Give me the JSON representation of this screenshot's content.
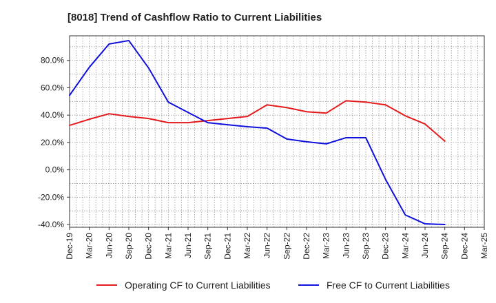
{
  "chart_data": {
    "type": "line",
    "title": "[8018]  Trend of Cashflow Ratio to Current Liabilities",
    "xlabel": "",
    "ylabel": "",
    "ylim": [
      -42,
      98
    ],
    "yticks": [
      -40,
      -20,
      0,
      20,
      40,
      60,
      80
    ],
    "ytick_labels": [
      "-40.0%",
      "-20.0%",
      "0.0%",
      "20.0%",
      "40.0%",
      "60.0%",
      "80.0%"
    ],
    "x": [
      "Dec-19",
      "Mar-20",
      "Jun-20",
      "Sep-20",
      "Dec-20",
      "Mar-21",
      "Jun-21",
      "Sep-21",
      "Dec-21",
      "Mar-22",
      "Jun-22",
      "Sep-22",
      "Dec-22",
      "Mar-23",
      "Jun-23",
      "Sep-23",
      "Dec-23",
      "Mar-24",
      "Jun-24",
      "Sep-24",
      "Dec-24",
      "Mar-25"
    ],
    "grid": true,
    "legend_position": "bottom",
    "series": [
      {
        "name": "Operating CF to Current Liabilities",
        "color": "#e41a1c",
        "values": [
          32.5,
          37.0,
          41.0,
          39.0,
          37.5,
          34.5,
          34.5,
          36.0,
          37.5,
          39.0,
          47.5,
          45.5,
          42.5,
          41.5,
          50.5,
          49.5,
          47.5,
          39.5,
          33.5,
          21.0,
          null,
          null
        ]
      },
      {
        "name": "Free CF to Current Liabilities",
        "color": "#1010dd",
        "values": [
          54.5,
          75.0,
          92.0,
          94.5,
          74.5,
          49.5,
          42.0,
          34.5,
          33.0,
          31.5,
          30.5,
          22.5,
          20.5,
          19.0,
          23.5,
          23.5,
          -7.0,
          -33.0,
          -39.5,
          -40.0,
          null,
          null
        ]
      }
    ]
  }
}
